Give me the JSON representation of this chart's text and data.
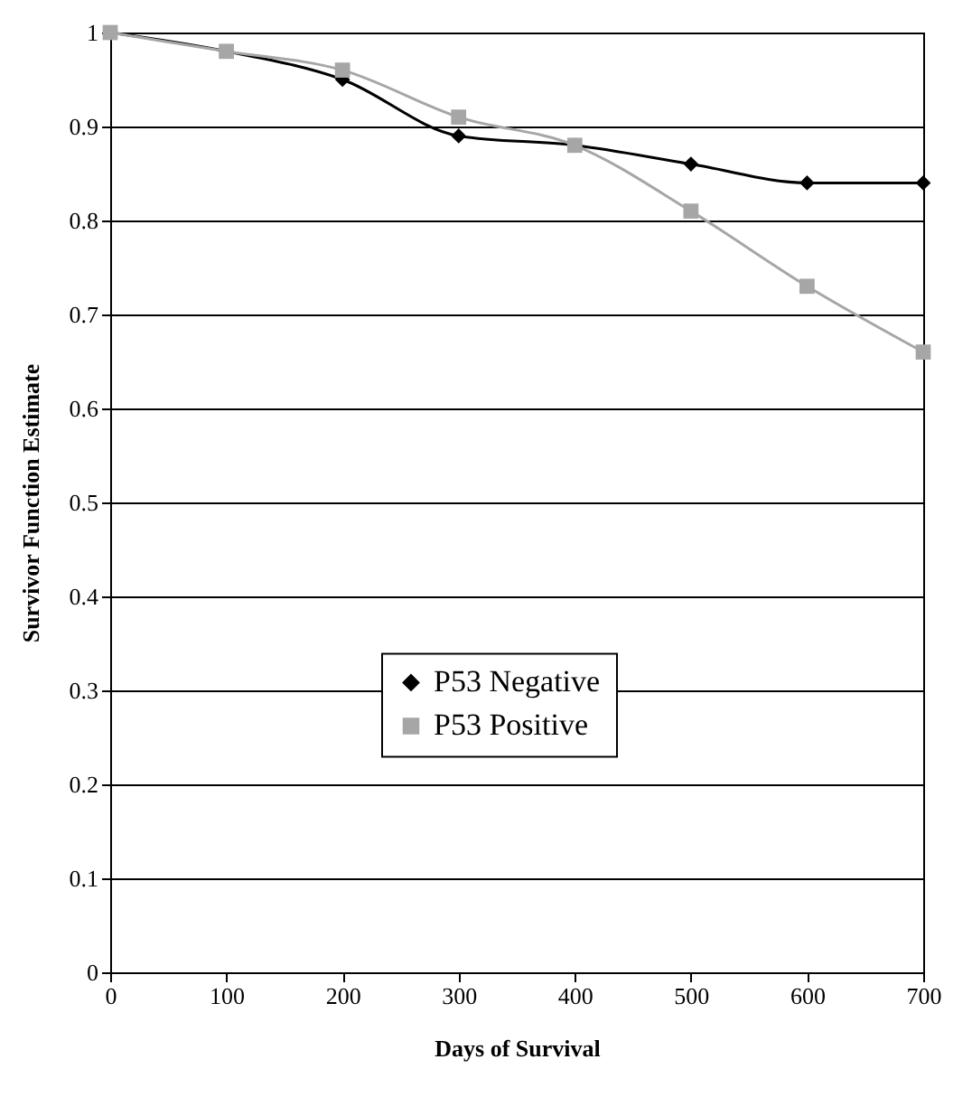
{
  "chart_data": {
    "type": "line",
    "xlabel": "Days of Survival",
    "ylabel": "Survivor Function Estimate",
    "x": [
      0,
      100,
      200,
      300,
      400,
      500,
      600,
      700
    ],
    "series": [
      {
        "name": "P53 Negative",
        "color": "#000000",
        "marker": "diamond",
        "values": [
          1,
          0.98,
          0.95,
          0.89,
          0.88,
          0.86,
          0.84,
          0.84
        ]
      },
      {
        "name": "P53 Positive",
        "color": "#a6a6a6",
        "marker": "square",
        "values": [
          1,
          0.98,
          0.96,
          0.91,
          0.88,
          0.81,
          0.73,
          0.66
        ]
      }
    ],
    "xlim": [
      0,
      700
    ],
    "xticks": [
      0,
      100,
      200,
      300,
      400,
      500,
      600,
      700
    ],
    "ylim": [
      0,
      1
    ],
    "yticks": [
      0,
      0.1,
      0.2,
      0.3,
      0.4,
      0.5,
      0.6,
      0.7,
      0.8,
      0.9,
      1
    ],
    "grid": "y",
    "legend": "bottom",
    "line_style": "solid"
  }
}
